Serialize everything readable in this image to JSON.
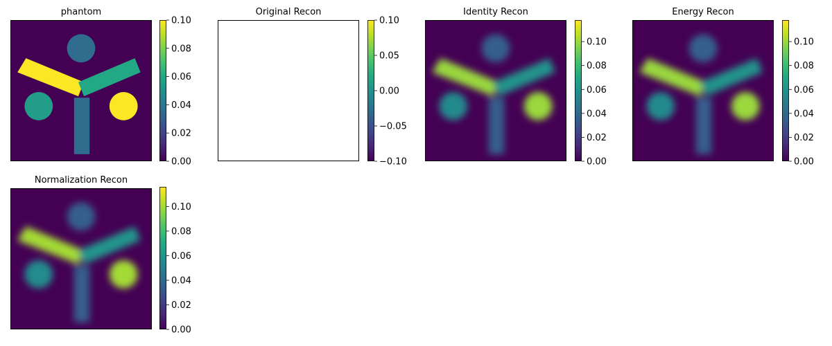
{
  "chart_data": [
    {
      "type": "heatmap",
      "title": "phantom",
      "colormap": "viridis",
      "image": {
        "background": 0.0,
        "shapes": [
          {
            "kind": "disk",
            "label": "top",
            "value": 0.035
          },
          {
            "kind": "disk",
            "label": "left",
            "value": 0.055
          },
          {
            "kind": "disk",
            "label": "right",
            "value": 0.1
          },
          {
            "kind": "bar",
            "label": "left arm",
            "value": 0.1
          },
          {
            "kind": "bar",
            "label": "right arm",
            "value": 0.06
          },
          {
            "kind": "bar",
            "label": "stem",
            "value": 0.035
          }
        ]
      },
      "colorbar": {
        "vmin": 0.0,
        "vmax": 0.1,
        "ticks": [
          "0.00",
          "0.02",
          "0.04",
          "0.06",
          "0.08",
          "0.10"
        ],
        "tick_values": [
          0,
          0.02,
          0.04,
          0.06,
          0.08,
          0.1
        ]
      }
    },
    {
      "type": "heatmap",
      "title": "Original Recon",
      "colormap": "viridis",
      "image": {
        "blank": true
      },
      "colorbar": {
        "vmin": -0.1,
        "vmax": 0.1,
        "ticks": [
          "−0.10",
          "−0.05",
          "0.00",
          "0.05",
          "0.10"
        ],
        "tick_values": [
          -0.1,
          -0.05,
          0,
          0.05,
          0.1
        ]
      }
    },
    {
      "type": "heatmap",
      "title": "Identity Recon",
      "colormap": "viridis",
      "image": {
        "background": 0.0,
        "blurred": true,
        "shapes": [
          {
            "kind": "disk",
            "label": "top",
            "value": 0.035
          },
          {
            "kind": "disk",
            "label": "left",
            "value": 0.055
          },
          {
            "kind": "disk",
            "label": "right",
            "value": 0.1
          },
          {
            "kind": "bar",
            "label": "left arm",
            "value": 0.1
          },
          {
            "kind": "bar",
            "label": "right arm",
            "value": 0.06
          },
          {
            "kind": "bar",
            "label": "stem",
            "value": 0.035
          }
        ]
      },
      "colorbar": {
        "vmin": 0.0,
        "vmax": 0.118,
        "ticks": [
          "0.00",
          "0.02",
          "0.04",
          "0.06",
          "0.08",
          "0.10"
        ],
        "tick_values": [
          0,
          0.02,
          0.04,
          0.06,
          0.08,
          0.1
        ]
      }
    },
    {
      "type": "heatmap",
      "title": "Energy Recon",
      "colormap": "viridis",
      "image": {
        "background": 0.0,
        "blurred": true,
        "shapes": [
          {
            "kind": "disk",
            "label": "top",
            "value": 0.035
          },
          {
            "kind": "disk",
            "label": "left",
            "value": 0.055
          },
          {
            "kind": "disk",
            "label": "right",
            "value": 0.1
          },
          {
            "kind": "bar",
            "label": "left arm",
            "value": 0.1
          },
          {
            "kind": "bar",
            "label": "right arm",
            "value": 0.06
          },
          {
            "kind": "bar",
            "label": "stem",
            "value": 0.035
          }
        ]
      },
      "colorbar": {
        "vmin": 0.0,
        "vmax": 0.118,
        "ticks": [
          "0.00",
          "0.02",
          "0.04",
          "0.06",
          "0.08",
          "0.10"
        ],
        "tick_values": [
          0,
          0.02,
          0.04,
          0.06,
          0.08,
          0.1
        ]
      }
    },
    {
      "type": "heatmap",
      "title": "Normalization Recon",
      "colormap": "viridis",
      "image": {
        "background": 0.0,
        "blurred": true,
        "shapes": [
          {
            "kind": "disk",
            "label": "top",
            "value": 0.035
          },
          {
            "kind": "disk",
            "label": "left",
            "value": 0.055
          },
          {
            "kind": "disk",
            "label": "right",
            "value": 0.1
          },
          {
            "kind": "bar",
            "label": "left arm",
            "value": 0.1
          },
          {
            "kind": "bar",
            "label": "right arm",
            "value": 0.06
          },
          {
            "kind": "bar",
            "label": "stem",
            "value": 0.035
          }
        ]
      },
      "colorbar": {
        "vmin": 0.0,
        "vmax": 0.116,
        "ticks": [
          "0.00",
          "0.02",
          "0.04",
          "0.06",
          "0.08",
          "0.10"
        ],
        "tick_values": [
          0,
          0.02,
          0.04,
          0.06,
          0.08,
          0.1
        ]
      }
    }
  ]
}
